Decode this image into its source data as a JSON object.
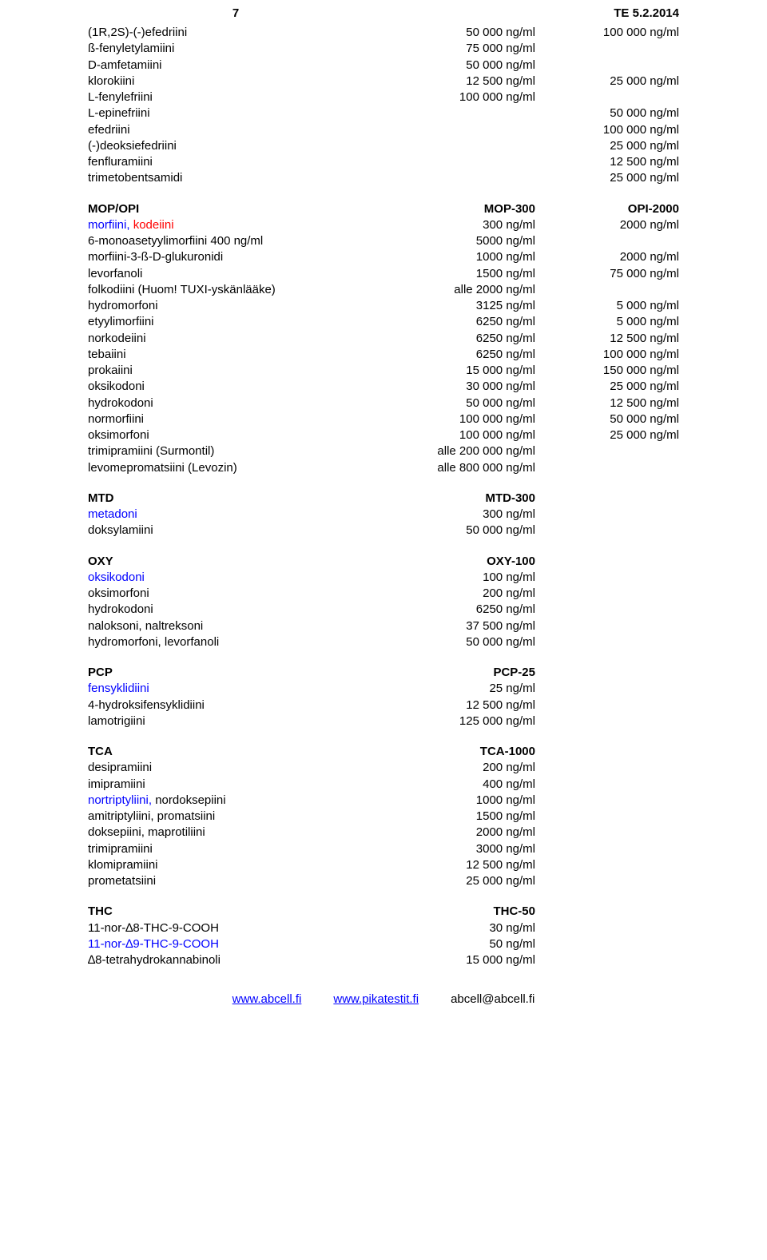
{
  "header": {
    "page_num": "7",
    "te_code": "TE 5.2.2014"
  },
  "sections": [
    {
      "rows": [
        {
          "c1": "(1R,2S)-(-)efedriini",
          "c2": "50 000 ng/ml",
          "c3": "100 000 ng/ml"
        },
        {
          "c1": "ß-fenyletylamiini",
          "c2": "75 000 ng/ml",
          "c3": ""
        },
        {
          "c1": "D-amfetamiini",
          "c2": "50 000 ng/ml",
          "c3": ""
        },
        {
          "c1": "klorokiini",
          "c2": "12 500 ng/ml",
          "c3": "25 000 ng/ml"
        },
        {
          "c1": "L-fenylefriini",
          "c2": "100 000 ng/ml",
          "c3": ""
        },
        {
          "c1": "L-epinefriini",
          "c2": "",
          "c3": "50 000 ng/ml"
        },
        {
          "c1": "efedriini",
          "c2": "",
          "c3": "100 000 ng/ml"
        },
        {
          "c1": "(-)deoksiefedriini",
          "c2": "",
          "c3": "25 000 ng/ml"
        },
        {
          "c1": "fenfluramiini",
          "c2": "",
          "c3": "12 500 ng/ml"
        },
        {
          "c1": "trimetobentsamidi",
          "c2": "",
          "c3": "25 000 ng/ml"
        }
      ]
    },
    {
      "rows": [
        {
          "c1": "MOP/OPI",
          "c1b": true,
          "c2": "MOP-300",
          "c2b": true,
          "c3": "OPI-2000",
          "c3b": true
        },
        {
          "c1": "morfiini, ",
          "c1red": "kodeiini",
          "c2": "300 ng/ml",
          "c3": "2000 ng/ml"
        },
        {
          "c1": "6-monoasetyylimorfiini  400 ng/ml",
          "c2": "5000 ng/ml",
          "c3": ""
        },
        {
          "c1": "morfiini-3-ß-D-glukuronidi",
          "c2": "1000 ng/ml",
          "c3": "2000 ng/ml"
        },
        {
          "c1": "levorfanoli",
          "c2": "1500 ng/ml",
          "c3": "75 000 ng/ml"
        },
        {
          "c1": "folkodiini (Huom! TUXI-yskänlääke)",
          "c2": "alle 2000 ng/ml",
          "c3": ""
        },
        {
          "c1": "hydromorfoni",
          "c2": "3125 ng/ml",
          "c3": "5 000 ng/ml"
        },
        {
          "c1": "etyylimorfiini",
          "c2": "6250 ng/ml",
          "c3": "5 000 ng/ml"
        },
        {
          "c1": "norkodeiini",
          "c2": "6250 ng/ml",
          "c3": "12 500 ng/ml"
        },
        {
          "c1": "tebaiini",
          "c2": "6250 ng/ml",
          "c3": "100 000 ng/ml"
        },
        {
          "c1": "prokaiini",
          "c2": "15 000 ng/ml",
          "c3": "150 000 ng/ml"
        },
        {
          "c1": "oksikodoni",
          "c2": "30 000 ng/ml",
          "c3": "25 000 ng/ml"
        },
        {
          "c1": "hydrokodoni",
          "c2": "50 000 ng/ml",
          "c3": "12 500 ng/ml"
        },
        {
          "c1": "normorfiini",
          "c2": "100 000 ng/ml",
          "c3": "50 000 ng/ml"
        },
        {
          "c1": "oksimorfoni",
          "c2": "100 000 ng/ml",
          "c3": "25 000 ng/ml"
        },
        {
          "c1": "trimipramiini (Surmontil)",
          "c2": "alle 200 000 ng/ml",
          "c3": ""
        },
        {
          "c1": "levomepromatsiini (Levozin)",
          "c2": "alle 800 000 ng/ml",
          "c3": ""
        }
      ]
    },
    {
      "rows": [
        {
          "c1": "MTD",
          "c1b": true,
          "c2": "MTD-300",
          "c2b": true,
          "c3": ""
        },
        {
          "c1": "metadoni",
          "c1blue": true,
          "c2": "300 ng/ml",
          "c3": ""
        },
        {
          "c1": "doksylamiini",
          "c2": "50 000 ng/ml",
          "c3": ""
        }
      ]
    },
    {
      "rows": [
        {
          "c1": "OXY",
          "c1b": true,
          "c2": "OXY-100",
          "c2b": true,
          "c3": ""
        },
        {
          "c1": "oksikodoni",
          "c1blue": true,
          "c2": "100 ng/ml",
          "c3": ""
        },
        {
          "c1": "oksimorfoni",
          "c2": "200 ng/ml",
          "c3": ""
        },
        {
          "c1": "hydrokodoni",
          "c2": "6250 ng/ml",
          "c3": ""
        },
        {
          "c1": "naloksoni, naltreksoni",
          "c2": "37 500 ng/ml",
          "c3": ""
        },
        {
          "c1": "hydromorfoni, levorfanoli",
          "c2": "50 000 ng/ml",
          "c3": ""
        }
      ]
    },
    {
      "rows": [
        {
          "c1": "PCP",
          "c1b": true,
          "c2": "PCP-25",
          "c2b": true,
          "c3": ""
        },
        {
          "c1": "fensyklidiini",
          "c1blue": true,
          "c2": "25 ng/ml",
          "c3": ""
        },
        {
          "c1": "4-hydroksifensyklidiini",
          "c2": "12 500 ng/ml",
          "c3": ""
        },
        {
          "c1": "lamotrigiini",
          "c2": "125 000 ng/ml",
          "c3": ""
        }
      ]
    },
    {
      "rows": [
        {
          "c1": "TCA",
          "c1b": true,
          "c2": "TCA-1000",
          "c2b": true,
          "c3": ""
        },
        {
          "c1": "desipramiini",
          "c2": "200 ng/ml",
          "c3": ""
        },
        {
          "c1": "imipramiini",
          "c2": "400 ng/ml",
          "c3": ""
        },
        {
          "c1": "nortriptyliini, ",
          "c1bluepart": true,
          "c1rest": "nordoksepiini",
          "c2": "1000 ng/ml",
          "c3": ""
        },
        {
          "c1": "amitriptyliini, promatsiini",
          "c2": "1500 ng/ml",
          "c3": ""
        },
        {
          "c1": "doksepiini, maprotiliini",
          "c2": "2000 ng/ml",
          "c3": ""
        },
        {
          "c1": "trimipramiini",
          "c2": "3000 ng/ml",
          "c3": ""
        },
        {
          "c1": "klomipramiini",
          "c2": "12 500 ng/ml",
          "c3": ""
        },
        {
          "c1": "prometatsiini",
          "c2": "25 000 ng/ml",
          "c3": ""
        }
      ]
    },
    {
      "rows": [
        {
          "c1": "THC",
          "c1b": true,
          "c2": "THC-50",
          "c2b": true,
          "c3": ""
        },
        {
          "c1": "11-nor-∆8-THC-9-COOH",
          "c2": "30 ng/ml",
          "c3": ""
        },
        {
          "c1": "11-nor-∆9-THC-9-COOH",
          "c1blue": true,
          "c2": "50 ng/ml",
          "c3": ""
        },
        {
          "c1": "∆8-tetrahydrokannabinoli",
          "c2": "15 000 ng/ml",
          "c3": ""
        }
      ]
    }
  ],
  "footer": {
    "link1": "www.abcell.fi",
    "link2": "www.pikatestit.fi",
    "email": "abcell@abcell.fi"
  }
}
